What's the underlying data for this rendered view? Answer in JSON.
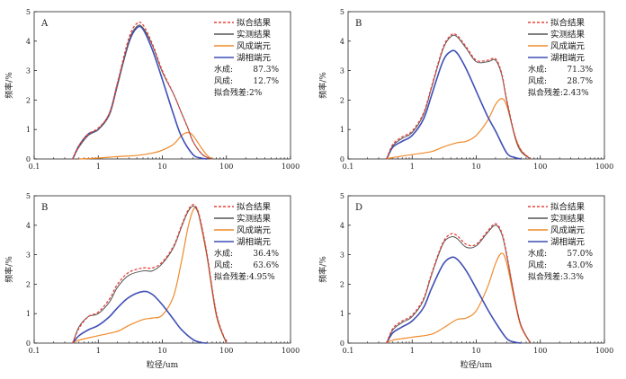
{
  "chart_data": [
    {
      "type": "line",
      "panel_label": "A",
      "xlabel": "",
      "ylabel": "频率/%",
      "xscale": "log",
      "xlim": [
        0.1,
        1000
      ],
      "ylim": [
        0,
        5
      ],
      "x_ticks": [
        "0.1",
        "1",
        "10",
        "100",
        "1000"
      ],
      "y_ticks": [
        "0",
        "1",
        "2",
        "3",
        "4",
        "5"
      ],
      "legend": [
        {
          "label": "拟合结果",
          "color": "#e8423a",
          "dash": "3,2"
        },
        {
          "label": "实测结果",
          "color": "#555555",
          "dash": ""
        },
        {
          "label": "风成端元",
          "color": "#f08a2a",
          "dash": ""
        },
        {
          "label": "湖相端元",
          "color": "#3f4fb5",
          "dash": ""
        }
      ],
      "stats": [
        {
          "label": "水成:",
          "value": "87.3%"
        },
        {
          "label": "风成:",
          "value": "12.7%"
        },
        {
          "label": "拟合残差:2%",
          "value": ""
        }
      ],
      "series": [
        {
          "key": "fit",
          "x": [
            0.4,
            0.5,
            0.7,
            1.0,
            1.5,
            2.0,
            3.0,
            4.0,
            5.0,
            7.0,
            10,
            15,
            20,
            25,
            30,
            40,
            50,
            60
          ],
          "y": [
            0,
            0.45,
            0.85,
            1.05,
            1.55,
            2.6,
            4.1,
            4.6,
            4.55,
            3.9,
            3.0,
            2.2,
            1.55,
            1.05,
            0.6,
            0.2,
            0.05,
            0
          ]
        },
        {
          "key": "measured",
          "x": [
            0.4,
            0.5,
            0.7,
            1.0,
            1.5,
            2.0,
            3.0,
            4.0,
            5.0,
            7.0,
            10,
            15,
            20,
            25,
            30,
            40,
            50,
            60
          ],
          "y": [
            0,
            0.4,
            0.8,
            1.0,
            1.5,
            2.5,
            4.0,
            4.5,
            4.45,
            3.85,
            2.95,
            2.2,
            1.55,
            1.05,
            0.6,
            0.2,
            0.05,
            0
          ]
        },
        {
          "key": "aeolian",
          "x": [
            0.5,
            1.0,
            2.0,
            4.0,
            7.0,
            10,
            15,
            20,
            25,
            30,
            40,
            50,
            60
          ],
          "y": [
            0,
            0.03,
            0.08,
            0.12,
            0.2,
            0.3,
            0.5,
            0.8,
            0.9,
            0.8,
            0.4,
            0.12,
            0
          ]
        },
        {
          "key": "lacustrine",
          "x": [
            0.4,
            0.5,
            0.7,
            1.0,
            1.5,
            2.0,
            3.0,
            4.0,
            5.0,
            7.0,
            10,
            15,
            20,
            30,
            40,
            50
          ],
          "y": [
            0,
            0.45,
            0.85,
            1.0,
            1.55,
            2.55,
            3.95,
            4.45,
            4.4,
            3.7,
            2.7,
            1.5,
            0.75,
            0.15,
            0.03,
            0
          ]
        }
      ]
    },
    {
      "type": "line",
      "panel_label": "B",
      "xlabel": "",
      "ylabel": "频率/%",
      "xscale": "log",
      "xlim": [
        0.1,
        1000
      ],
      "ylim": [
        0,
        5
      ],
      "x_ticks": [
        "0.1",
        "1",
        "10",
        "100",
        "1000"
      ],
      "y_ticks": [
        "0",
        "1",
        "2",
        "3",
        "4",
        "5"
      ],
      "legend": [
        {
          "label": "拟合结果",
          "color": "#e8423a",
          "dash": "3,2"
        },
        {
          "label": "实测结果",
          "color": "#555555",
          "dash": ""
        },
        {
          "label": "风成端元",
          "color": "#f08a2a",
          "dash": ""
        },
        {
          "label": "湖相端元",
          "color": "#3f4fb5",
          "dash": ""
        }
      ],
      "stats": [
        {
          "label": "水成:",
          "value": "71.3%"
        },
        {
          "label": "风成:",
          "value": "28.7%"
        },
        {
          "label": "拟合残差:2.43%",
          "value": ""
        }
      ],
      "series": [
        {
          "key": "fit",
          "x": [
            0.4,
            0.5,
            0.7,
            1.0,
            1.5,
            2.0,
            3.0,
            4.0,
            5.0,
            7.0,
            10,
            15,
            20,
            25,
            30,
            40,
            50,
            70
          ],
          "y": [
            0,
            0.5,
            0.75,
            0.95,
            1.55,
            2.45,
            3.75,
            4.2,
            4.2,
            3.8,
            3.35,
            3.35,
            3.4,
            2.9,
            2.0,
            0.8,
            0.3,
            0
          ]
        },
        {
          "key": "measured",
          "x": [
            0.4,
            0.5,
            0.7,
            1.0,
            1.5,
            2.0,
            3.0,
            4.0,
            5.0,
            7.0,
            10,
            15,
            20,
            25,
            30,
            40,
            50,
            70
          ],
          "y": [
            0,
            0.45,
            0.7,
            0.9,
            1.5,
            2.4,
            3.7,
            4.15,
            4.15,
            3.75,
            3.3,
            3.3,
            3.35,
            2.85,
            1.95,
            0.75,
            0.25,
            0
          ]
        },
        {
          "key": "aeolian",
          "x": [
            0.4,
            0.5,
            1.0,
            2.0,
            3.0,
            5.0,
            7.0,
            10,
            15,
            20,
            25,
            30,
            40,
            50,
            70
          ],
          "y": [
            0,
            0.05,
            0.15,
            0.25,
            0.4,
            0.55,
            0.6,
            0.8,
            1.3,
            1.85,
            2.05,
            1.8,
            0.8,
            0.3,
            0
          ]
        },
        {
          "key": "lacustrine",
          "x": [
            0.4,
            0.5,
            0.7,
            1.0,
            1.5,
            2.0,
            3.0,
            4.0,
            5.0,
            7.0,
            10,
            15,
            20,
            30,
            40,
            50
          ],
          "y": [
            0,
            0.4,
            0.6,
            0.8,
            1.35,
            2.15,
            3.3,
            3.65,
            3.6,
            3.05,
            2.3,
            1.45,
            0.95,
            0.2,
            0.05,
            0
          ]
        }
      ]
    },
    {
      "type": "line",
      "panel_label": "B",
      "xlabel": "粒径/um",
      "ylabel": "频率/%",
      "xscale": "log",
      "xlim": [
        0.1,
        1000
      ],
      "ylim": [
        0,
        5
      ],
      "x_ticks": [
        "0.1",
        "1",
        "10",
        "100",
        "1000"
      ],
      "y_ticks": [
        "0",
        "1",
        "2",
        "3",
        "4",
        "5"
      ],
      "legend": [
        {
          "label": "拟合结果",
          "color": "#e8423a",
          "dash": "3,2"
        },
        {
          "label": "实测结果",
          "color": "#555555",
          "dash": ""
        },
        {
          "label": "风成端元",
          "color": "#f08a2a",
          "dash": ""
        },
        {
          "label": "湖相端元",
          "color": "#3f4fb5",
          "dash": ""
        }
      ],
      "stats": [
        {
          "label": "水成:",
          "value": "36.4%"
        },
        {
          "label": "风成:",
          "value": "63.6%"
        },
        {
          "label": "拟合残差:4.95%",
          "value": ""
        }
      ],
      "series": [
        {
          "key": "fit",
          "x": [
            0.4,
            0.5,
            0.7,
            1.0,
            1.5,
            2.0,
            3.0,
            5.0,
            7.0,
            10,
            15,
            20,
            25,
            30,
            35,
            40,
            50,
            70,
            100
          ],
          "y": [
            0,
            0.5,
            0.9,
            1.05,
            1.5,
            2.0,
            2.4,
            2.55,
            2.55,
            2.75,
            3.3,
            4.0,
            4.5,
            4.7,
            4.55,
            4.1,
            3.0,
            1.0,
            0
          ]
        },
        {
          "key": "measured",
          "x": [
            0.4,
            0.5,
            0.7,
            1.0,
            1.5,
            2.0,
            3.0,
            5.0,
            7.0,
            10,
            15,
            20,
            25,
            30,
            35,
            40,
            50,
            70,
            100
          ],
          "y": [
            0,
            0.55,
            0.9,
            1.0,
            1.4,
            1.9,
            2.3,
            2.45,
            2.45,
            2.7,
            3.25,
            3.95,
            4.45,
            4.65,
            4.5,
            4.05,
            2.95,
            0.95,
            0
          ]
        },
        {
          "key": "aeolian",
          "x": [
            0.4,
            0.5,
            1.0,
            2.0,
            3.0,
            5.0,
            7.0,
            10,
            15,
            20,
            25,
            30,
            35,
            40,
            50,
            70,
            100
          ],
          "y": [
            0,
            0.1,
            0.25,
            0.4,
            0.6,
            0.8,
            0.85,
            0.95,
            1.6,
            2.8,
            3.9,
            4.5,
            4.55,
            4.0,
            2.9,
            0.9,
            0
          ]
        },
        {
          "key": "lacustrine",
          "x": [
            0.4,
            0.5,
            0.7,
            1.0,
            1.5,
            2.0,
            3.0,
            5.0,
            7.0,
            10,
            15,
            20,
            30,
            40,
            50
          ],
          "y": [
            0,
            0.25,
            0.45,
            0.6,
            0.9,
            1.2,
            1.55,
            1.75,
            1.65,
            1.3,
            0.8,
            0.45,
            0.12,
            0.02,
            0
          ]
        }
      ]
    },
    {
      "type": "line",
      "panel_label": "D",
      "xlabel": "粒径/um",
      "ylabel": "频率/%",
      "xscale": "log",
      "xlim": [
        0.1,
        1000
      ],
      "ylim": [
        0,
        5
      ],
      "x_ticks": [
        "0.1",
        "1",
        "10",
        "100",
        "1000"
      ],
      "y_ticks": [
        "0",
        "1",
        "2",
        "3",
        "4",
        "5"
      ],
      "legend": [
        {
          "label": "拟合结果",
          "color": "#e8423a",
          "dash": "3,2"
        },
        {
          "label": "实测结果",
          "color": "#555555",
          "dash": ""
        },
        {
          "label": "风成端元",
          "color": "#f08a2a",
          "dash": ""
        },
        {
          "label": "湖相端元",
          "color": "#3f4fb5",
          "dash": ""
        }
      ],
      "stats": [
        {
          "label": "水成:",
          "value": "57.0%"
        },
        {
          "label": "风成:",
          "value": "43.0%"
        },
        {
          "label": "拟合残差:3.3%",
          "value": ""
        }
      ],
      "series": [
        {
          "key": "fit",
          "x": [
            0.4,
            0.5,
            0.7,
            1.0,
            1.5,
            2.0,
            3.0,
            4.0,
            5.0,
            7.0,
            10,
            15,
            20,
            25,
            30,
            40,
            50,
            70
          ],
          "y": [
            0,
            0.5,
            0.75,
            0.95,
            1.5,
            2.35,
            3.4,
            3.7,
            3.65,
            3.35,
            3.35,
            3.8,
            4.05,
            3.75,
            3.0,
            1.5,
            0.6,
            0
          ]
        },
        {
          "key": "measured",
          "x": [
            0.4,
            0.5,
            0.7,
            1.0,
            1.5,
            2.0,
            3.0,
            4.0,
            5.0,
            7.0,
            10,
            15,
            20,
            25,
            30,
            40,
            50,
            70
          ],
          "y": [
            0,
            0.45,
            0.7,
            0.9,
            1.45,
            2.3,
            3.35,
            3.6,
            3.55,
            3.25,
            3.3,
            3.75,
            4.0,
            3.7,
            2.95,
            1.5,
            0.6,
            0
          ]
        },
        {
          "key": "aeolian",
          "x": [
            0.4,
            0.5,
            1.0,
            2.0,
            3.0,
            5.0,
            7.0,
            10,
            15,
            20,
            25,
            30,
            40,
            50,
            70
          ],
          "y": [
            0,
            0.1,
            0.2,
            0.3,
            0.5,
            0.8,
            0.85,
            1.1,
            1.9,
            2.7,
            3.05,
            2.7,
            1.4,
            0.55,
            0
          ]
        },
        {
          "key": "lacustrine",
          "x": [
            0.4,
            0.5,
            0.7,
            1.0,
            1.5,
            2.0,
            3.0,
            4.0,
            5.0,
            7.0,
            10,
            15,
            20,
            30,
            40,
            50
          ],
          "y": [
            0,
            0.35,
            0.55,
            0.75,
            1.2,
            1.85,
            2.65,
            2.9,
            2.85,
            2.45,
            1.85,
            1.15,
            0.7,
            0.15,
            0.03,
            0
          ]
        }
      ]
    }
  ]
}
